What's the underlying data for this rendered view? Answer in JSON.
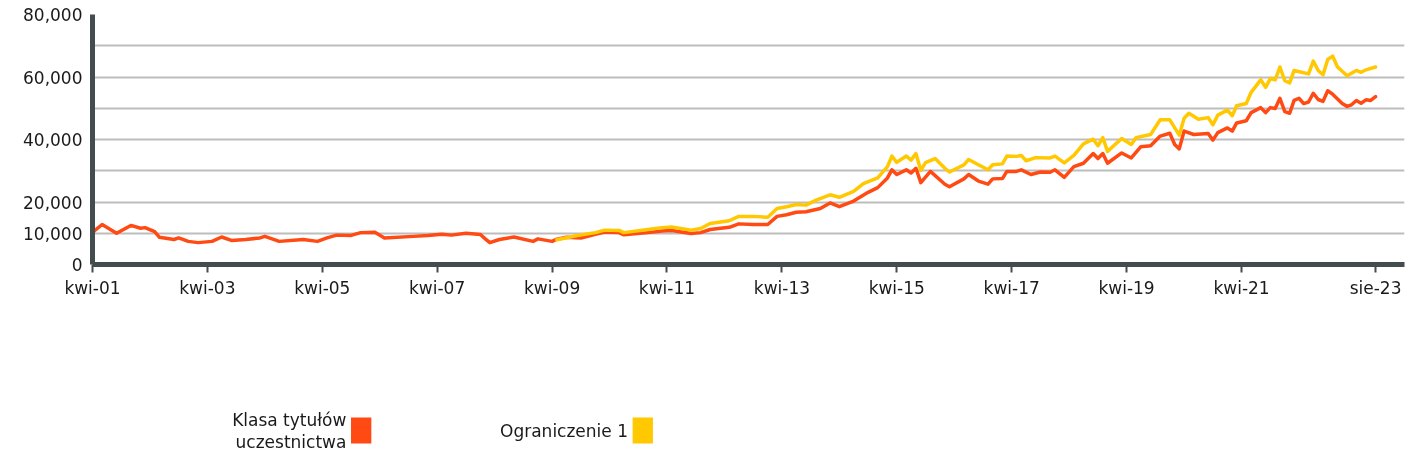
{
  "chart_data": {
    "type": "line",
    "xlim": [
      "2001-04",
      "2024-02"
    ],
    "xticks": [
      {
        "value": "2001-04",
        "label": "kwi-01"
      },
      {
        "value": "2003-04",
        "label": "kwi-03"
      },
      {
        "value": "2005-04",
        "label": "kwi-05"
      },
      {
        "value": "2007-04",
        "label": "kwi-07"
      },
      {
        "value": "2009-04",
        "label": "kwi-09"
      },
      {
        "value": "2011-04",
        "label": "kwi-11"
      },
      {
        "value": "2013-04",
        "label": "kwi-13"
      },
      {
        "value": "2015-04",
        "label": "kwi-15"
      },
      {
        "value": "2017-04",
        "label": "kwi-17"
      },
      {
        "value": "2019-04",
        "label": "kwi-19"
      },
      {
        "value": "2021-04",
        "label": "kwi-21"
      },
      {
        "value": "2023-08",
        "label": "sie-23"
      }
    ],
    "ylim": [
      0,
      80000
    ],
    "yticks": [
      {
        "value": 0,
        "label": "0"
      },
      {
        "value": 10000,
        "label": "10,000"
      },
      {
        "value": 20000,
        "label": "20,000"
      },
      {
        "value": 30000,
        "label": null
      },
      {
        "value": 40000,
        "label": "40,000"
      },
      {
        "value": 50000,
        "label": null
      },
      {
        "value": 60000,
        "label": "60,000"
      },
      {
        "value": 70000,
        "label": null
      },
      {
        "value": 80000,
        "label": "80,000"
      }
    ],
    "grid": "y",
    "legend": "bottom",
    "series": [
      {
        "name": "Klasa tytułów uczestnictwa",
        "color": "#ff4a14",
        "x": [
          "2001-04",
          "2001-06",
          "2001-09",
          "2001-12",
          "2002-02",
          "2002-03",
          "2002-05",
          "2002-06",
          "2002-09",
          "2002-10",
          "2002-12",
          "2003-02",
          "2003-05",
          "2003-07",
          "2003-09",
          "2003-12",
          "2004-03",
          "2004-04",
          "2004-07",
          "2004-12",
          "2005-03",
          "2005-05",
          "2005-07",
          "2005-10",
          "2005-12",
          "2006-03",
          "2006-05",
          "2006-11",
          "2007-02",
          "2007-05",
          "2007-07",
          "2007-10",
          "2008-01",
          "2008-02",
          "2008-03",
          "2008-05",
          "2008-08",
          "2008-12",
          "2009-01",
          "2009-04",
          "2009-05",
          "2009-07",
          "2009-10",
          "2010-01",
          "2010-03",
          "2010-06",
          "2010-07",
          "2010-12",
          "2011-03",
          "2011-05",
          "2011-09",
          "2011-11",
          "2012-01",
          "2012-05",
          "2012-07",
          "2012-10",
          "2013-01",
          "2013-03",
          "2013-05",
          "2013-07",
          "2013-09",
          "2013-12",
          "2014-02",
          "2014-04",
          "2014-07",
          "2014-10",
          "2014-12",
          "2015-02",
          "2015-03",
          "2015-04",
          "2015-06",
          "2015-07",
          "2015-08",
          "2015-09",
          "2015-11",
          "2016-02",
          "2016-03",
          "2016-06",
          "2016-07",
          "2016-09",
          "2016-11",
          "2016-12",
          "2017-02",
          "2017-03",
          "2017-05",
          "2017-06",
          "2017-08",
          "2017-10",
          "2017-12",
          "2018-01",
          "2018-03",
          "2018-05",
          "2018-07",
          "2018-09",
          "2018-10",
          "2018-11",
          "2018-12",
          "2019-03",
          "2019-05",
          "2019-07",
          "2019-09",
          "2019-11",
          "2020-01",
          "2020-02",
          "2020-03",
          "2020-04",
          "2020-06",
          "2020-09",
          "2020-10",
          "2020-11",
          "2021-01",
          "2021-02",
          "2021-03",
          "2021-05",
          "2021-06",
          "2021-08",
          "2021-09",
          "2021-10",
          "2021-11",
          "2021-12",
          "2022-01",
          "2022-02",
          "2022-03",
          "2022-04",
          "2022-05",
          "2022-06",
          "2022-07",
          "2022-08",
          "2022-09",
          "2022-10",
          "2022-11",
          "2023-01",
          "2023-02",
          "2023-03",
          "2023-04",
          "2023-05",
          "2023-06",
          "2023-07",
          "2023-08"
        ],
        "values": [
          10300,
          12800,
          10000,
          12500,
          11600,
          11800,
          10500,
          8700,
          8000,
          8500,
          7400,
          7000,
          7400,
          8800,
          7700,
          8000,
          8500,
          9000,
          7400,
          8000,
          7400,
          8500,
          9400,
          9300,
          10200,
          10300,
          8500,
          9000,
          9300,
          9700,
          9400,
          10000,
          9600,
          8200,
          7000,
          8000,
          8800,
          7400,
          8200,
          7400,
          8100,
          8700,
          8500,
          9700,
          10400,
          10200,
          9500,
          10200,
          10700,
          10900,
          9900,
          10200,
          11200,
          11900,
          13000,
          12800,
          12800,
          15400,
          15900,
          16700,
          16900,
          17900,
          19700,
          18500,
          20300,
          23100,
          24600,
          27700,
          30300,
          28800,
          30300,
          29300,
          30800,
          26200,
          29800,
          25700,
          24900,
          27400,
          28800,
          26700,
          25700,
          27400,
          27500,
          29800,
          29800,
          30300,
          28800,
          29600,
          29500,
          30300,
          27900,
          31300,
          32400,
          35500,
          33900,
          35500,
          32400,
          35700,
          34100,
          37700,
          38000,
          41100,
          42000,
          38400,
          37000,
          42700,
          41600,
          41900,
          39800,
          42200,
          43700,
          42700,
          45300,
          46000,
          48600,
          50200,
          48600,
          50200,
          49900,
          53200,
          48900,
          48400,
          52500,
          53200,
          51500,
          52000,
          54800,
          52800,
          52200,
          55600,
          54500,
          51500,
          50600,
          51100,
          52500,
          51600,
          52700,
          52500,
          53700
        ]
      },
      {
        "name": "Ograniczenie 1",
        "color": "#ffc800",
        "x": [
          "2009-05",
          "2009-09",
          "2010-01",
          "2010-03",
          "2010-06",
          "2010-07",
          "2010-12",
          "2011-03",
          "2011-05",
          "2011-09",
          "2011-11",
          "2012-01",
          "2012-05",
          "2012-07",
          "2012-10",
          "2013-01",
          "2013-03",
          "2013-05",
          "2013-07",
          "2013-09",
          "2013-11",
          "2014-02",
          "2014-04",
          "2014-07",
          "2014-09",
          "2014-12",
          "2015-02",
          "2015-03",
          "2015-04",
          "2015-06",
          "2015-07",
          "2015-08",
          "2015-09",
          "2015-10",
          "2015-12",
          "2016-02",
          "2016-03",
          "2016-06",
          "2016-07",
          "2016-09",
          "2016-11",
          "2016-12",
          "2017-02",
          "2017-03",
          "2017-05",
          "2017-06",
          "2017-07",
          "2017-09",
          "2017-12",
          "2018-01",
          "2018-03",
          "2018-05",
          "2018-07",
          "2018-09",
          "2018-10",
          "2018-11",
          "2018-12",
          "2019-03",
          "2019-05",
          "2019-06",
          "2019-09",
          "2019-11",
          "2020-01",
          "2020-03",
          "2020-04",
          "2020-05",
          "2020-07",
          "2020-09",
          "2020-10",
          "2020-11",
          "2021-01",
          "2021-02",
          "2021-03",
          "2021-05",
          "2021-06",
          "2021-08",
          "2021-09",
          "2021-10",
          "2021-11",
          "2021-12",
          "2022-01",
          "2022-02",
          "2022-03",
          "2022-06",
          "2022-07",
          "2022-08",
          "2022-09",
          "2022-10",
          "2022-11",
          "2022-12",
          "2023-02",
          "2023-04",
          "2023-05",
          "2023-06",
          "2023-08"
        ],
        "values": [
          7900,
          9200,
          10200,
          11000,
          10900,
          10200,
          11200,
          11800,
          12000,
          11000,
          11500,
          13100,
          14000,
          15400,
          15400,
          15100,
          17900,
          18500,
          19200,
          19000,
          20500,
          22300,
          21500,
          23400,
          25900,
          27700,
          31300,
          34700,
          32700,
          34700,
          33400,
          35500,
          30100,
          32600,
          33900,
          30800,
          29600,
          31900,
          33600,
          31900,
          30300,
          31900,
          32200,
          34700,
          34600,
          34900,
          33200,
          34200,
          34100,
          34700,
          32500,
          34900,
          38600,
          40100,
          38000,
          40600,
          36200,
          40300,
          38400,
          40600,
          41600,
          46300,
          46300,
          41400,
          46800,
          48400,
          46500,
          47000,
          44700,
          47800,
          49400,
          47600,
          50800,
          51500,
          55100,
          59100,
          56700,
          59500,
          59100,
          63200,
          58800,
          58100,
          62100,
          61000,
          65100,
          62100,
          60700,
          65600,
          66700,
          63300,
          60400,
          62100,
          61500,
          62300,
          63200
        ]
      }
    ]
  }
}
